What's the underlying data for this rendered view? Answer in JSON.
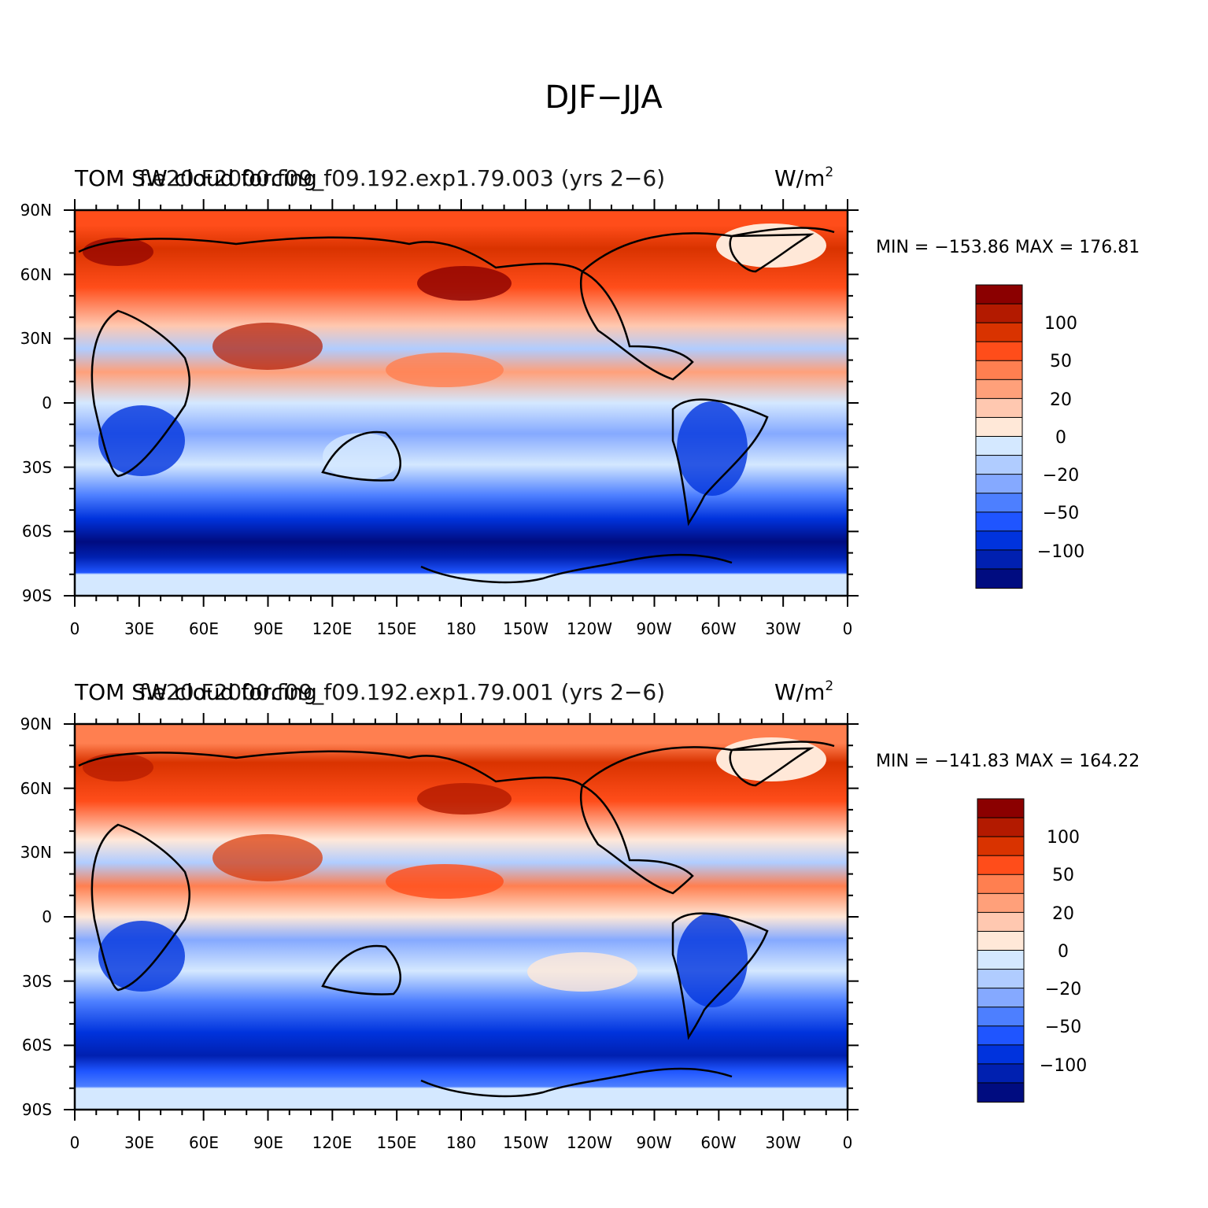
{
  "figure": {
    "title": "DJF−JJA"
  },
  "panels": [
    {
      "left_title": "TOM SW cloud forcing",
      "center_title": "f.e20.F2000.f09_f09.192.exp1.79.003 (yrs 2−6)",
      "units": "W/m",
      "units_sup": "2",
      "minmax_text": "MIN = −153.86 MAX = 176.81",
      "min": -153.86,
      "max": 176.81
    },
    {
      "left_title": "TOM SW cloud forcing",
      "center_title": "f.e20.F2000.f09_f09.192.exp1.79.001 (yrs 2−6)",
      "units": "W/m",
      "units_sup": "2",
      "minmax_text": "MIN = −141.83 MAX = 164.22",
      "min": -141.83,
      "max": 164.22
    }
  ],
  "axes": {
    "lat_labels": [
      "90N",
      "60N",
      "30N",
      "0",
      "30S",
      "60S",
      "90S"
    ],
    "lon_labels": [
      "0",
      "30E",
      "60E",
      "90E",
      "120E",
      "150E",
      "180",
      "150W",
      "120W",
      "90W",
      "60W",
      "30W",
      "0"
    ]
  },
  "colorbar": {
    "colors": [
      "#8b0000",
      "#b31a00",
      "#d93300",
      "#ff4d1a",
      "#ff7f50",
      "#ffa07a",
      "#ffc8b0",
      "#ffe8d8",
      "#d4e8ff",
      "#b0ccff",
      "#85a9ff",
      "#4d7fff",
      "#1f55ff",
      "#0033dd",
      "#0020b0",
      "#000c80"
    ],
    "labels": [
      "100",
      "50",
      "20",
      "0",
      "−20",
      "−50",
      "−100"
    ]
  }
}
